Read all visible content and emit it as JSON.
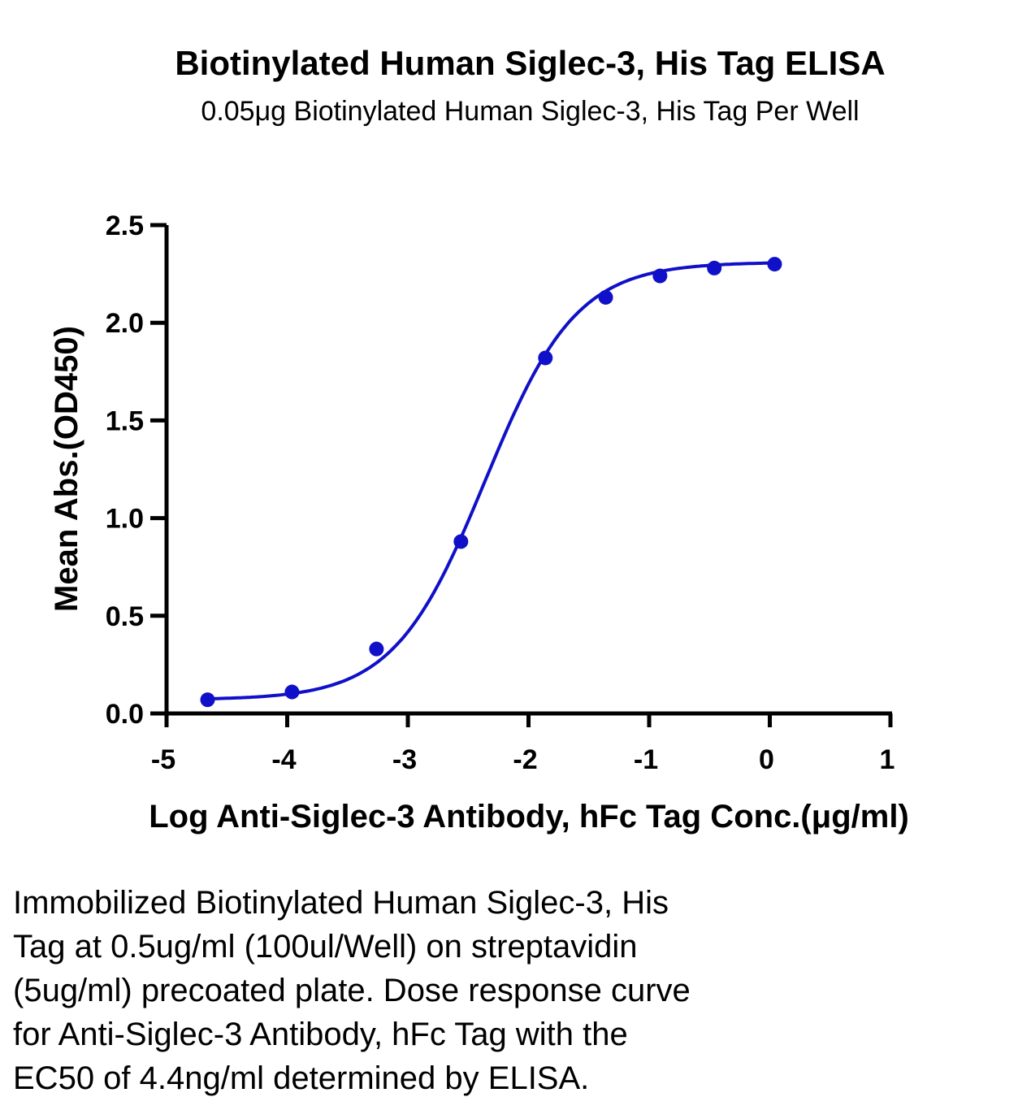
{
  "chart_data": {
    "type": "scatter",
    "title": "Biotinylated Human Siglec-3, His Tag ELISA",
    "subtitle": "0.05μg Biotinylated Human Siglec-3, His Tag Per Well",
    "xlabel": "Log Anti-Siglec-3 Antibody, hFc Tag Conc.(μg/ml)",
    "ylabel": "Mean Abs.(OD450)",
    "xlim": [
      -5,
      1
    ],
    "ylim": [
      0,
      2.5
    ],
    "xticks": [
      "-5",
      "-4",
      "-3",
      "-2",
      "-1",
      "0",
      "1"
    ],
    "yticks": [
      "0.0",
      "0.5",
      "1.0",
      "1.5",
      "2.0",
      "2.5"
    ],
    "grid": false,
    "color": "#1010c8",
    "series": [
      {
        "x": [
          -4.66,
          -3.96,
          -3.26,
          -2.56,
          -1.86,
          -1.36,
          -0.91,
          -0.46,
          0.04
        ],
        "y": [
          0.07,
          0.11,
          0.33,
          0.88,
          1.82,
          2.13,
          2.24,
          2.28,
          2.3
        ]
      }
    ],
    "fit": {
      "model": "4PL",
      "bottom": 0.07,
      "top": 2.31,
      "log_ec50": -2.36,
      "hill_slope": 1.15
    }
  },
  "caption": "Immobilized Biotinylated Human Siglec-3, His\nTag at 0.5ug/ml (100ul/Well) on streptavidin\n(5ug/ml) precoated plate. Dose response curve\nfor Anti-Siglec-3 Antibody, hFc Tag with the\nEC50 of 4.4ng/ml determined by ELISA."
}
